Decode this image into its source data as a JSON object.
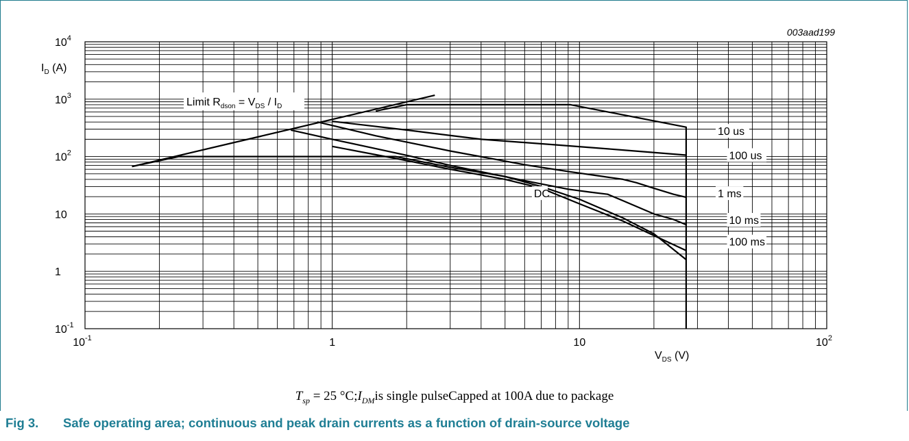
{
  "figure": {
    "code": "003aad199",
    "number": "Fig 3.",
    "title": "Safe operating area; continuous and peak drain currents as a function of drain-source voltage"
  },
  "caption": {
    "t_symbol": "T",
    "t_sub": "sp",
    "t_rel": "= 25 °C;",
    "i_symbol": "I",
    "i_sub": "DM",
    "text": "is single pulseCapped at 100A due to package"
  },
  "chart_data": {
    "type": "line",
    "xscale": "log",
    "yscale": "log",
    "xlim": [
      0.1,
      100
    ],
    "ylim": [
      0.1,
      10000
    ],
    "grid": true,
    "xlabel": "V_DS (V)",
    "ylabel": "I_D (A)",
    "x_ticks": [
      {
        "value": 0.1,
        "base": "10",
        "exp": "-1"
      },
      {
        "value": 1,
        "base": "1",
        "exp": ""
      },
      {
        "value": 10,
        "base": "10",
        "exp": ""
      },
      {
        "value": 100,
        "base": "10",
        "exp": "2"
      }
    ],
    "y_ticks": [
      {
        "value": 0.1,
        "base": "10",
        "exp": "-1"
      },
      {
        "value": 1,
        "base": "1",
        "exp": ""
      },
      {
        "value": 10,
        "base": "10",
        "exp": ""
      },
      {
        "value": 100,
        "base": "10",
        "exp": "2"
      },
      {
        "value": 1000,
        "base": "10",
        "exp": "3"
      },
      {
        "value": 10000,
        "base": "10",
        "exp": "4"
      }
    ],
    "annotation": "Limit R_dson = V_DS / I_D",
    "limit_line": {
      "x": [
        0.155,
        2.6
      ],
      "y": [
        67,
        1170
      ]
    },
    "series": [
      {
        "name": "10 us",
        "x": [
          1.5,
          2.0,
          9.2,
          27.0,
          27.0
        ],
        "y": [
          620,
          800,
          800,
          325,
          0.1
        ]
      },
      {
        "name": "100 us",
        "x": [
          1.0,
          2.0,
          4.0,
          8.0,
          15.0,
          27.0
        ],
        "y": [
          410,
          290,
          200,
          160,
          130,
          106
        ]
      },
      {
        "name": "1 ms",
        "x": [
          0.87,
          1.5,
          3.0,
          6.0,
          9.0,
          12.0,
          15.0,
          17.0,
          20.0,
          24.0,
          27.0
        ],
        "y": [
          400,
          230,
          125,
          72,
          55,
          46,
          40,
          35,
          28,
          22,
          19.5
        ]
      },
      {
        "name": "10 ms",
        "x": [
          0.68,
          1.0,
          2.0,
          3.0,
          6.0,
          9.0,
          11.0,
          13.0,
          15.0,
          20.0,
          24.0,
          27.0
        ],
        "y": [
          290,
          200,
          105,
          70,
          38,
          27,
          24,
          22,
          17,
          10,
          8,
          6.5
        ]
      },
      {
        "name": "100 ms",
        "x": [
          1.0,
          2.0,
          3.0,
          5.0,
          7.0,
          10.0,
          15.0,
          20.0,
          27.0
        ],
        "y": [
          150,
          85,
          60,
          40,
          28,
          15,
          7.5,
          4.2,
          2.3
        ]
      },
      {
        "name": "DC",
        "x": [
          0.24,
          1.8,
          3.0,
          5.0,
          7.0,
          10.0,
          15.0,
          20.0,
          27.0
        ],
        "y": [
          100,
          100,
          65,
          45,
          30,
          18,
          8.5,
          4.5,
          1.6
        ]
      },
      {
        "name": "package limit",
        "x": [
          0.155,
          0.24
        ],
        "y": [
          67,
          100
        ]
      }
    ],
    "labels": [
      {
        "text": "10 us",
        "x": 36,
        "y": 280
      },
      {
        "text": "100 us",
        "x": 40,
        "y": 106
      },
      {
        "text": "1 ms",
        "x": 36,
        "y": 23
      },
      {
        "text": "10 ms",
        "x": 40,
        "y": 7.9
      },
      {
        "text": "100 ms",
        "x": 40,
        "y": 3.3
      },
      {
        "text": "DC",
        "x": 6.5,
        "y": 23
      }
    ]
  }
}
